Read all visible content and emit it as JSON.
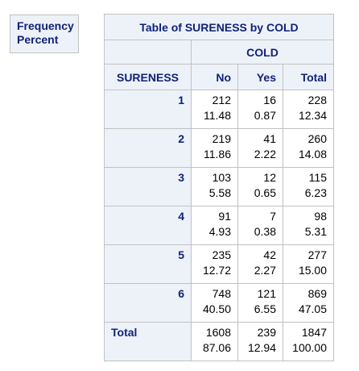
{
  "legend": {
    "line1": "Frequency",
    "line2": "Percent"
  },
  "table": {
    "title": "Table of SURENESS by COLD",
    "column_group": "COLD",
    "row_variable": "SURENESS",
    "columns": [
      "No",
      "Yes",
      "Total"
    ],
    "rows": [
      {
        "label": "1",
        "cells": [
          {
            "freq": "212",
            "pct": "11.48"
          },
          {
            "freq": "16",
            "pct": "0.87"
          },
          {
            "freq": "228",
            "pct": "12.34"
          }
        ]
      },
      {
        "label": "2",
        "cells": [
          {
            "freq": "219",
            "pct": "11.86"
          },
          {
            "freq": "41",
            "pct": "2.22"
          },
          {
            "freq": "260",
            "pct": "14.08"
          }
        ]
      },
      {
        "label": "3",
        "cells": [
          {
            "freq": "103",
            "pct": "5.58"
          },
          {
            "freq": "12",
            "pct": "0.65"
          },
          {
            "freq": "115",
            "pct": "6.23"
          }
        ]
      },
      {
        "label": "4",
        "cells": [
          {
            "freq": "91",
            "pct": "4.93"
          },
          {
            "freq": "7",
            "pct": "0.38"
          },
          {
            "freq": "98",
            "pct": "5.31"
          }
        ]
      },
      {
        "label": "5",
        "cells": [
          {
            "freq": "235",
            "pct": "12.72"
          },
          {
            "freq": "42",
            "pct": "2.27"
          },
          {
            "freq": "277",
            "pct": "15.00"
          }
        ]
      },
      {
        "label": "6",
        "cells": [
          {
            "freq": "748",
            "pct": "40.50"
          },
          {
            "freq": "121",
            "pct": "6.55"
          },
          {
            "freq": "869",
            "pct": "47.05"
          }
        ]
      },
      {
        "label": "Total",
        "cells": [
          {
            "freq": "1608",
            "pct": "87.06"
          },
          {
            "freq": "239",
            "pct": "12.94"
          },
          {
            "freq": "1847",
            "pct": "100.00"
          }
        ]
      }
    ]
  },
  "colors": {
    "header_bg": "#edf2f9",
    "header_text": "#112277",
    "border": "#c1c1c1"
  }
}
